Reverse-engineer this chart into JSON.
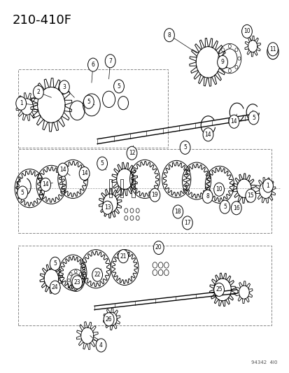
{
  "title": "210-410F",
  "watermark": "94342  4I0",
  "bg_color": "#ffffff",
  "line_color": "#000000",
  "title_fontsize": 13,
  "fig_width": 4.14,
  "fig_height": 5.33,
  "dpi": 100
}
